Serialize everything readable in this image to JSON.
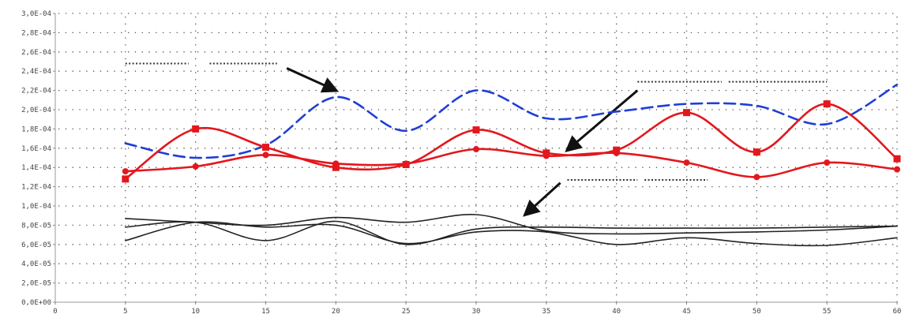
{
  "chart_data": {
    "type": "line",
    "title": "",
    "xlabel": "",
    "ylabel": "",
    "xlim": [
      0,
      60
    ],
    "ylim": [
      0,
      0.0003
    ],
    "grid": true,
    "x_ticks": [
      {
        "value": 0,
        "label": "0"
      },
      {
        "value": 5,
        "label": "5"
      },
      {
        "value": 10,
        "label": "10"
      },
      {
        "value": 15,
        "label": "15"
      },
      {
        "value": 20,
        "label": "20"
      },
      {
        "value": 25,
        "label": "25"
      },
      {
        "value": 30,
        "label": "30"
      },
      {
        "value": 35,
        "label": "35"
      },
      {
        "value": 40,
        "label": "40"
      },
      {
        "value": 45,
        "label": "45"
      },
      {
        "value": 50,
        "label": "50"
      },
      {
        "value": 55,
        "label": "55"
      },
      {
        "value": 60,
        "label": "60"
      }
    ],
    "y_ticks": [
      {
        "value": 0.0,
        "label": "0,0E+00"
      },
      {
        "value": 2e-05,
        "label": "2,0E-05"
      },
      {
        "value": 4e-05,
        "label": "4,0E-05"
      },
      {
        "value": 6e-05,
        "label": "6,0E-05"
      },
      {
        "value": 8e-05,
        "label": "8,0E-05"
      },
      {
        "value": 0.0001,
        "label": "1,0E-04"
      },
      {
        "value": 0.00012,
        "label": "1,2E-04"
      },
      {
        "value": 0.00014,
        "label": "1,4E-04"
      },
      {
        "value": 0.00016,
        "label": "1,6E-04"
      },
      {
        "value": 0.00018,
        "label": "1,8E-04"
      },
      {
        "value": 0.0002,
        "label": "2,0E-04"
      },
      {
        "value": 0.00022,
        "label": "2,2E-04"
      },
      {
        "value": 0.00024,
        "label": "2,4E-04"
      },
      {
        "value": 0.00026,
        "label": "2,6E-04"
      },
      {
        "value": 0.00028,
        "label": "2,8E-04"
      },
      {
        "value": 0.0003,
        "label": "3,0E-04"
      }
    ],
    "series": [
      {
        "color": "#1f3fd6",
        "style": "dashed",
        "marker": "none",
        "points": [
          [
            5,
            0.000165
          ],
          [
            10,
            0.00015
          ],
          [
            15,
            0.000163
          ],
          [
            20,
            0.000213
          ],
          [
            25,
            0.000178
          ],
          [
            30,
            0.00022
          ],
          [
            35,
            0.000191
          ],
          [
            40,
            0.000198
          ],
          [
            45,
            0.000206
          ],
          [
            50,
            0.000204
          ],
          [
            55,
            0.000185
          ],
          [
            60,
            0.000226
          ]
        ]
      },
      {
        "color": "#e3171d",
        "style": "solid",
        "marker": "square",
        "points": [
          [
            5,
            0.000128
          ],
          [
            10,
            0.00018
          ],
          [
            15,
            0.000161
          ],
          [
            20,
            0.00014
          ],
          [
            25,
            0.000143
          ],
          [
            30,
            0.000179
          ],
          [
            35,
            0.000155
          ],
          [
            40,
            0.000158
          ],
          [
            45,
            0.000197
          ],
          [
            50,
            0.000156
          ],
          [
            55,
            0.000206
          ],
          [
            60,
            0.000149
          ]
        ]
      },
      {
        "color": "#e3171d",
        "style": "solid",
        "marker": "circle",
        "points": [
          [
            5,
            0.000136
          ],
          [
            10,
            0.000141
          ],
          [
            15,
            0.000153
          ],
          [
            20,
            0.000144
          ],
          [
            25,
            0.000144
          ],
          [
            30,
            0.000159
          ],
          [
            35,
            0.000152
          ],
          [
            40,
            0.000155
          ],
          [
            45,
            0.000145
          ],
          [
            50,
            0.00013
          ],
          [
            55,
            0.000145
          ],
          [
            60,
            0.000138
          ]
        ]
      },
      {
        "color": "#222222",
        "style": "solid",
        "marker": "none",
        "points": [
          [
            5,
            8.7e-05
          ],
          [
            10,
            8.3e-05
          ],
          [
            15,
            8e-05
          ],
          [
            20,
            8.8e-05
          ],
          [
            25,
            8.3e-05
          ],
          [
            30,
            9.1e-05
          ],
          [
            35,
            7.4e-05
          ],
          [
            40,
            7.1e-05
          ],
          [
            45,
            7.2e-05
          ],
          [
            50,
            7.3e-05
          ],
          [
            55,
            7.5e-05
          ],
          [
            60,
            7.9e-05
          ]
        ]
      },
      {
        "color": "#222222",
        "style": "solid",
        "marker": "none",
        "points": [
          [
            5,
            7.8e-05
          ],
          [
            10,
            8.3e-05
          ],
          [
            15,
            6.4e-05
          ],
          [
            20,
            8.4e-05
          ],
          [
            25,
            6e-05
          ],
          [
            30,
            7.6e-05
          ],
          [
            35,
            7.8e-05
          ],
          [
            40,
            7.7e-05
          ],
          [
            45,
            7.7e-05
          ],
          [
            50,
            7.7e-05
          ],
          [
            55,
            7.8e-05
          ],
          [
            60,
            7.9e-05
          ]
        ]
      },
      {
        "color": "#222222",
        "style": "solid",
        "marker": "none",
        "points": [
          [
            5,
            6.4e-05
          ],
          [
            10,
            8.3e-05
          ],
          [
            15,
            7.8e-05
          ],
          [
            20,
            8e-05
          ],
          [
            25,
            6.1e-05
          ],
          [
            30,
            7.3e-05
          ],
          [
            35,
            7.3e-05
          ],
          [
            40,
            6e-05
          ],
          [
            45,
            6.7e-05
          ],
          [
            50,
            6.1e-05
          ],
          [
            55,
            5.9e-05
          ],
          [
            60,
            6.7e-05
          ]
        ]
      }
    ],
    "annotations": {
      "arrows": [
        {
          "from": [
            16.5,
            0.000243
          ],
          "to": [
            20,
            0.00022
          ]
        },
        {
          "from": [
            41.5,
            0.00022
          ],
          "to": [
            36.5,
            0.000158
          ]
        },
        {
          "from": [
            36,
            0.000124
          ],
          "to": [
            33.5,
            9.1e-05
          ]
        }
      ],
      "dotted_leaders": [
        {
          "x": [
            5,
            9.5
          ],
          "y": 0.000248
        },
        {
          "x": [
            11,
            15.8
          ],
          "y": 0.000248
        },
        {
          "x": [
            41.5,
            47.5
          ],
          "y": 0.000229
        },
        {
          "x": [
            48,
            55
          ],
          "y": 0.000229
        },
        {
          "x": [
            36.5,
            41.5
          ],
          "y": 0.000127
        },
        {
          "x": [
            42,
            46.5
          ],
          "y": 0.000127
        }
      ]
    }
  }
}
